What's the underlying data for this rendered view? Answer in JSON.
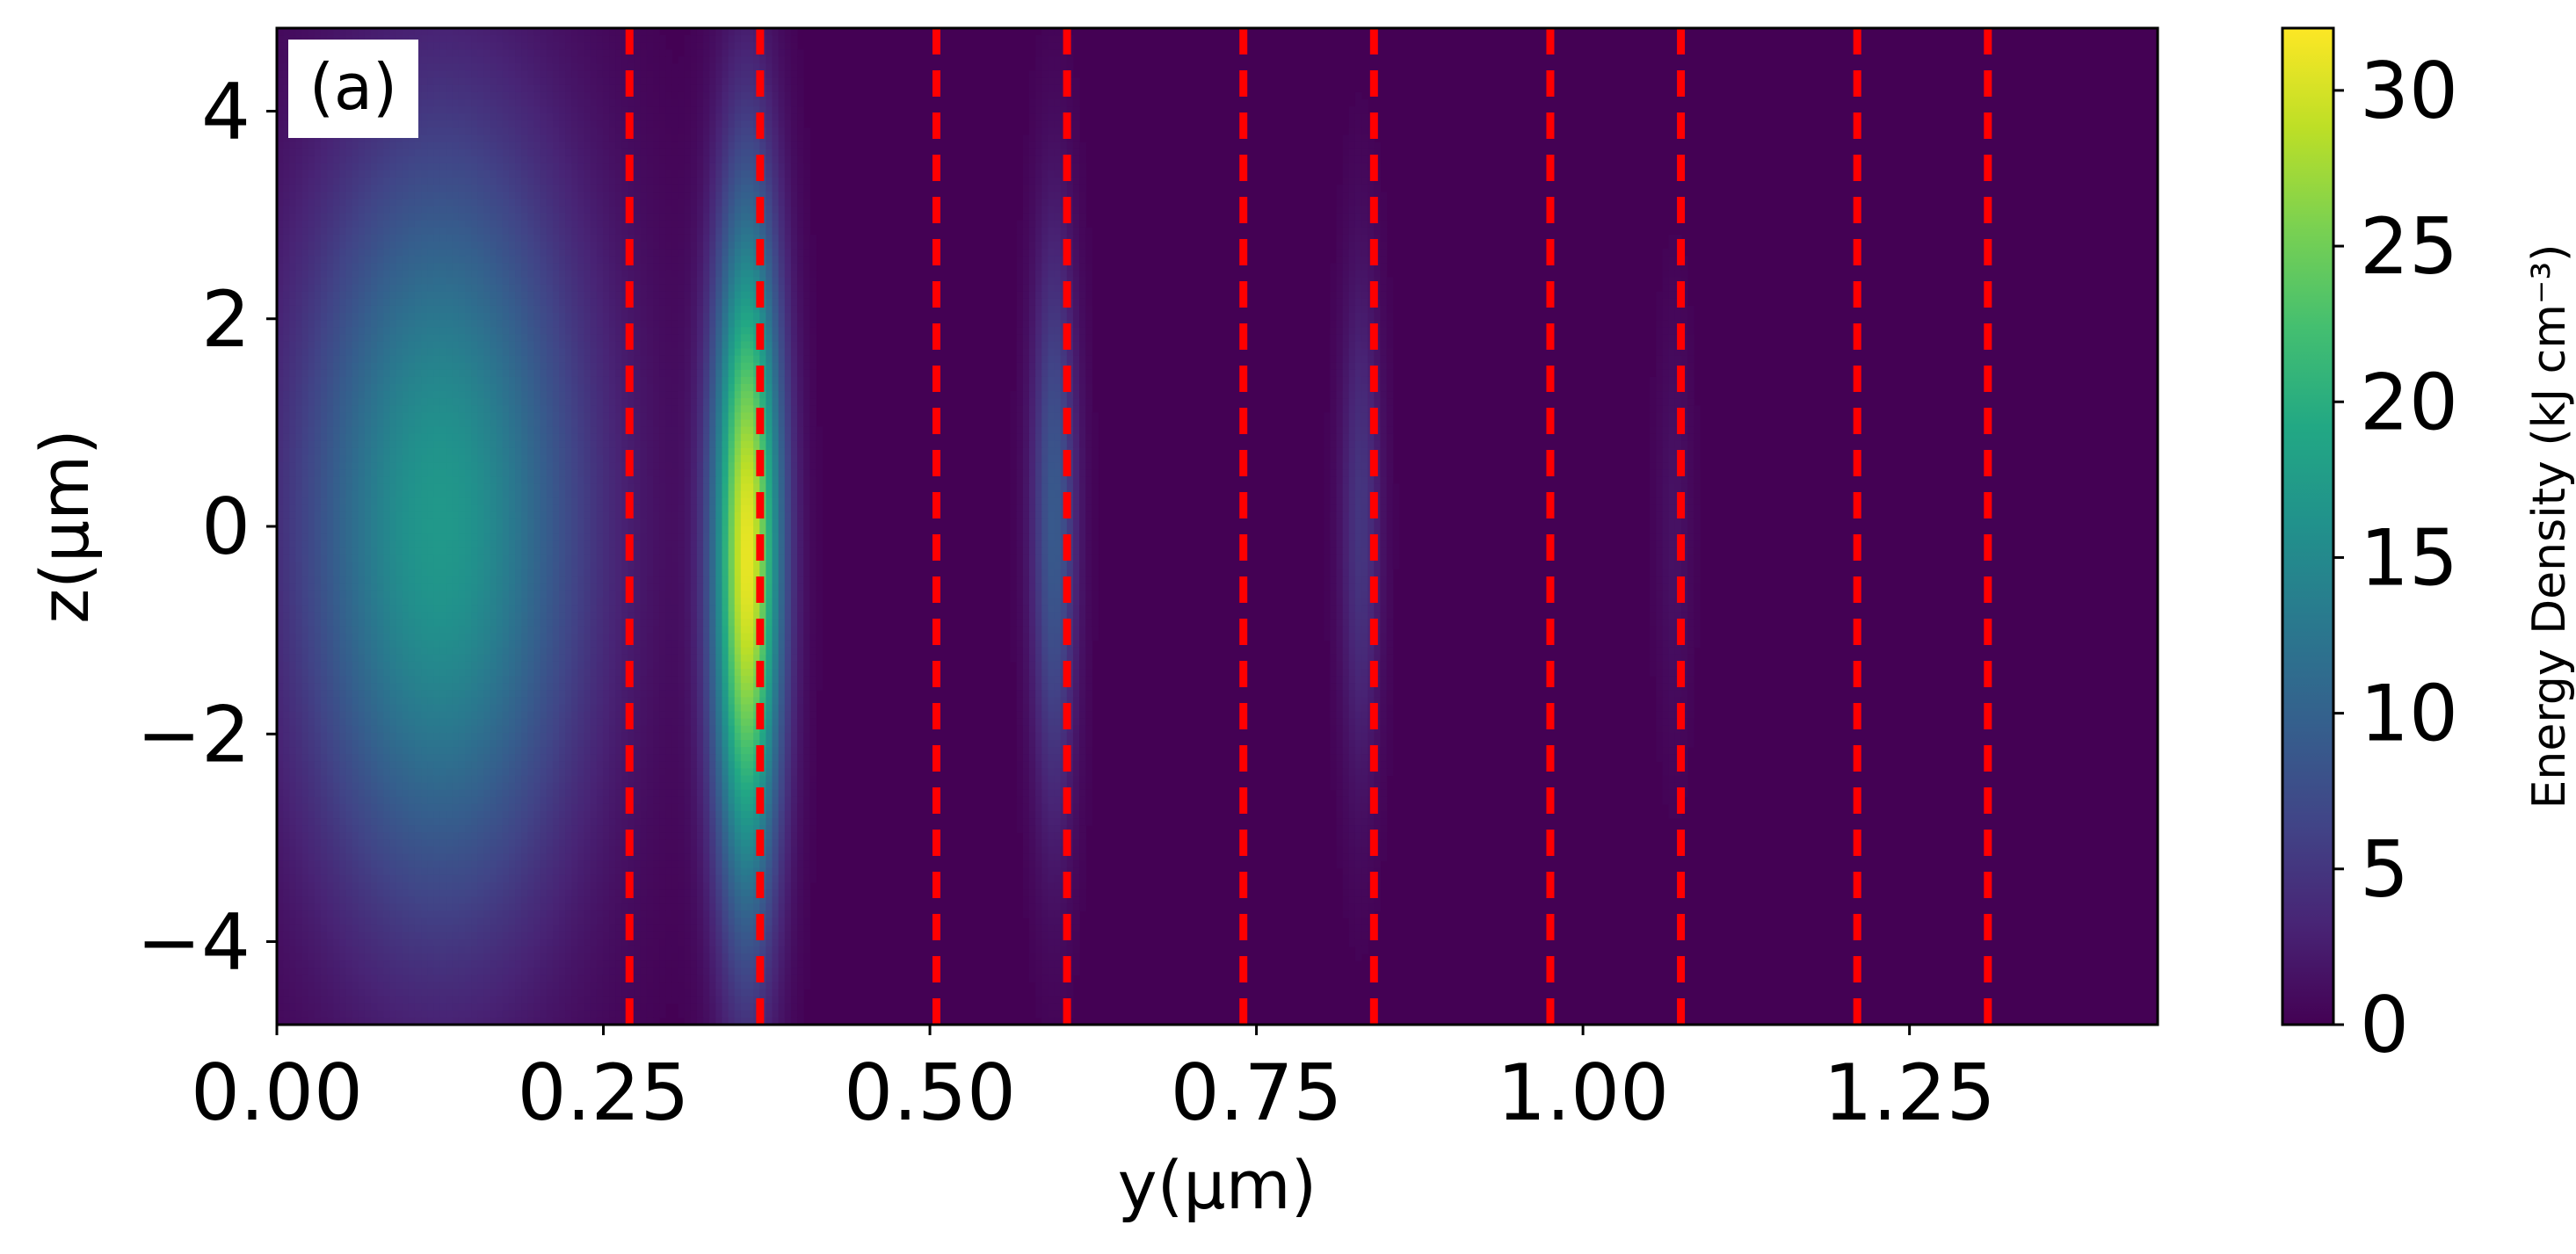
{
  "chart_data": {
    "type": "heatmap",
    "panel_label": "(a)",
    "xlabel": "y(μm)",
    "ylabel": "z(μm)",
    "xlim": [
      0.0,
      1.44
    ],
    "ylim": [
      -4.8,
      4.8
    ],
    "xticks": [
      {
        "value": 0.0,
        "label": "0.00"
      },
      {
        "value": 0.25,
        "label": "0.25"
      },
      {
        "value": 0.5,
        "label": "0.50"
      },
      {
        "value": 0.75,
        "label": "0.75"
      },
      {
        "value": 1.0,
        "label": "1.00"
      },
      {
        "value": 1.25,
        "label": "1.25"
      }
    ],
    "yticks": [
      {
        "value": 4,
        "label": "4"
      },
      {
        "value": 2,
        "label": "2"
      },
      {
        "value": 0,
        "label": "0"
      },
      {
        "value": -2,
        "label": "−2"
      },
      {
        "value": -4,
        "label": "−4"
      }
    ],
    "colorbar": {
      "title": "Energy Density (kJ cm⁻³)",
      "colormap": "viridis",
      "range": [
        0,
        32
      ],
      "ticks": [
        {
          "value": 0,
          "label": "0"
        },
        {
          "value": 5,
          "label": "5"
        },
        {
          "value": 10,
          "label": "10"
        },
        {
          "value": 15,
          "label": "15"
        },
        {
          "value": 20,
          "label": "20"
        },
        {
          "value": 25,
          "label": "25"
        },
        {
          "value": 30,
          "label": "30"
        }
      ]
    },
    "background_value": 0,
    "blobs": [
      {
        "y_center": 0.125,
        "z_center": 0.0,
        "y_width": 0.075,
        "z_width": 2.6,
        "peak": 17
      },
      {
        "y_center": 0.36,
        "z_center": -0.3,
        "y_width": 0.018,
        "z_width": 2.3,
        "peak": 31
      },
      {
        "y_center": 0.595,
        "z_center": 0.0,
        "y_width": 0.012,
        "z_width": 1.9,
        "peak": 9
      },
      {
        "y_center": 0.83,
        "z_center": 0.0,
        "y_width": 0.011,
        "z_width": 1.7,
        "peak": 5
      },
      {
        "y_center": 1.07,
        "z_center": 0.0,
        "y_width": 0.01,
        "z_width": 1.5,
        "peak": 1.5
      }
    ],
    "boundary_lines": {
      "color": "#ff0000",
      "style": "dashed",
      "y_positions": [
        0.27,
        0.37,
        0.505,
        0.605,
        0.74,
        0.84,
        0.975,
        1.075,
        1.21,
        1.31
      ]
    }
  }
}
